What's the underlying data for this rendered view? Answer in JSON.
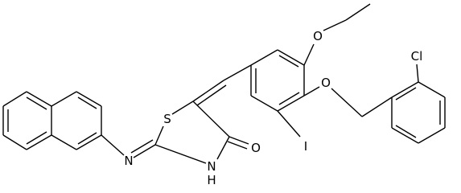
{
  "atoms": {
    "chlorine": "Cl",
    "ethoxy_oxygen": "O",
    "benzyloxy_oxygen": "O",
    "sulfur": "S",
    "iodine": "I",
    "carbonyl_oxygen": "O",
    "imine_nitrogen": "N",
    "ring_nitrogen": "N",
    "ring_hydrogen": "H"
  }
}
